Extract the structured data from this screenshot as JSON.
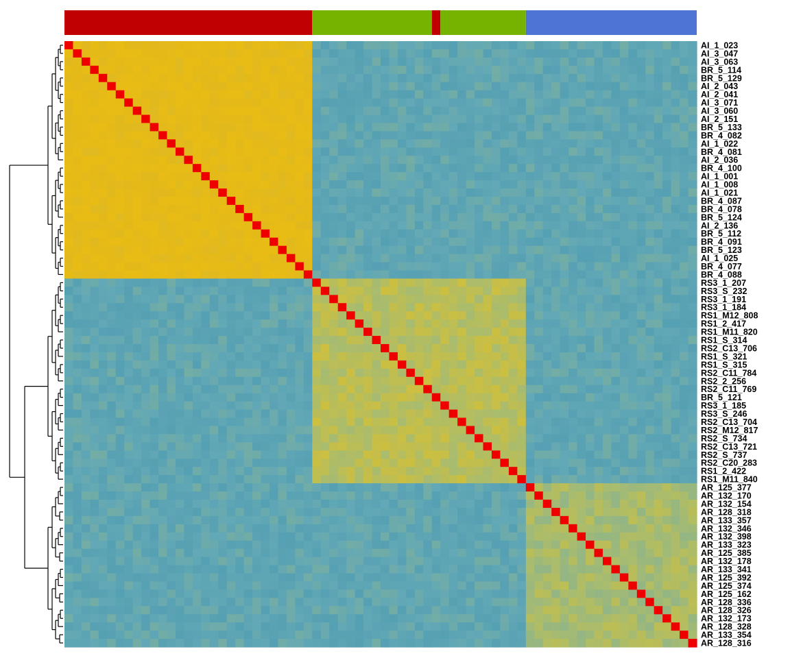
{
  "chart_data": {
    "type": "heatmap",
    "title": "",
    "xlabel": "",
    "ylabel": "",
    "symmetric": true,
    "row_labels": [
      "AI_1_023",
      "AI_3_047",
      "AI_3_063",
      "BR_5_114",
      "BR_5_129",
      "AI_2_043",
      "AI_2_041",
      "AI_3_071",
      "AI_3_060",
      "AI_2_151",
      "BR_5_133",
      "BR_4_082",
      "AI_1_022",
      "BR_4_081",
      "AI_2_036",
      "BR_4_100",
      "AI_1_001",
      "AI_1_008",
      "AI_1_021",
      "BR_4_087",
      "BR_4_078",
      "BR_5_124",
      "AI_2_136",
      "BR_5_112",
      "BR_4_091",
      "BR_5_123",
      "AI_1_025",
      "BR_4_077",
      "BR_4_088",
      "RS3_1_207",
      "RS3_S_232",
      "RS3_1_191",
      "RS3_1_184",
      "RS1_M12_808",
      "RS1_2_417",
      "RS1_M11_820",
      "RS1_S_314",
      "RS2_C13_706",
      "RS1_S_321",
      "RS1_S_315",
      "RS2_C11_784",
      "RS2_2_256",
      "RS2_C11_769",
      "BR_5_121",
      "RS3_1_185",
      "RS3_S_246",
      "RS2_C13_704",
      "RS2_M12_817",
      "RS2_S_734",
      "RS2_C13_721",
      "RS2_S_737",
      "RS2_C20_283",
      "RS1_2_422",
      "RS1_M11_840",
      "AR_125_377",
      "AR_132_170",
      "AR_132_154",
      "AR_128_318",
      "AR_133_357",
      "AR_132_346",
      "AR_132_398",
      "AR_133_323",
      "AR_125_385",
      "AR_132_178",
      "AR_133_341",
      "AR_125_392",
      "AR_125_374",
      "AR_125_162",
      "AR_128_336",
      "AR_128_326",
      "AR_132_173",
      "AR_128_328",
      "AR_133_354",
      "AR_128_316"
    ],
    "column_groups": [
      {
        "start": 0,
        "end": 28,
        "color": "#c00000"
      },
      {
        "start": 29,
        "end": 42,
        "color": "#76b300"
      },
      {
        "start": 43,
        "end": 43,
        "color": "#c00000"
      },
      {
        "start": 44,
        "end": 53,
        "color": "#76b300"
      },
      {
        "start": 54,
        "end": 73,
        "color": "#4e75d6"
      }
    ],
    "blocks": [
      {
        "start": 0,
        "end": 28,
        "value": 0.95
      },
      {
        "start": 29,
        "end": 53,
        "value": 0.62
      },
      {
        "start": 54,
        "end": 73,
        "value": 0.55
      }
    ],
    "off_block_value": 0.28,
    "diagonal_value": 1.0,
    "colorscale": [
      {
        "v": 0.0,
        "color": "#3c8fad"
      },
      {
        "v": 0.3,
        "color": "#62a8b6"
      },
      {
        "v": 0.55,
        "color": "#a9bc6e"
      },
      {
        "v": 0.7,
        "color": "#cdbf3f"
      },
      {
        "v": 0.9,
        "color": "#e3b91b"
      },
      {
        "v": 1.0,
        "color": "#e8bc14"
      }
    ],
    "diagonal_color": "#ee0000",
    "dendrogram": "rows, left",
    "legend": "none",
    "grid": false
  }
}
